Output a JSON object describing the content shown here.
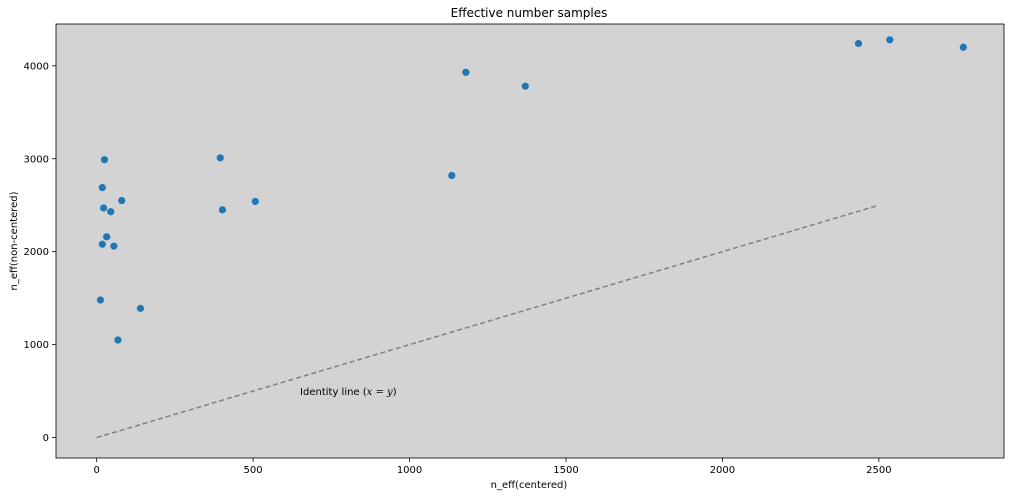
{
  "chart_data": {
    "type": "scatter",
    "title": "Effective number samples",
    "xlabel": "n_eff(centered)",
    "ylabel": "n_eff(non-centered)",
    "xlim": [
      -130,
      2900
    ],
    "ylim": [
      -220,
      4450
    ],
    "xticks": [
      0,
      500,
      1000,
      1500,
      2000,
      2500
    ],
    "yticks": [
      0,
      1000,
      2000,
      3000,
      4000
    ],
    "background": "#d3d3d3",
    "grid": false,
    "legend": "none",
    "series": [
      {
        "color": "#1f77b4",
        "points": [
          {
            "x": 25,
            "y": 2990
          },
          {
            "x": 18,
            "y": 2690
          },
          {
            "x": 80,
            "y": 2550
          },
          {
            "x": 22,
            "y": 2470
          },
          {
            "x": 45,
            "y": 2430
          },
          {
            "x": 32,
            "y": 2160
          },
          {
            "x": 18,
            "y": 2080
          },
          {
            "x": 55,
            "y": 2060
          },
          {
            "x": 12,
            "y": 1480
          },
          {
            "x": 140,
            "y": 1390
          },
          {
            "x": 68,
            "y": 1050
          },
          {
            "x": 395,
            "y": 3010
          },
          {
            "x": 402,
            "y": 2450
          },
          {
            "x": 507,
            "y": 2540
          },
          {
            "x": 1135,
            "y": 2820
          },
          {
            "x": 1180,
            "y": 3930
          },
          {
            "x": 1370,
            "y": 3780
          },
          {
            "x": 2435,
            "y": 4240
          },
          {
            "x": 2535,
            "y": 4280
          },
          {
            "x": 2770,
            "y": 4200
          }
        ]
      }
    ],
    "reference_line": {
      "x": [
        0,
        2500
      ],
      "y": [
        0,
        2500
      ],
      "color": "#808080",
      "style": "dashed"
    },
    "annotation": {
      "prefix": "Identity line (",
      "math": "x = y",
      "suffix": ")",
      "x": 650,
      "y": 500
    }
  }
}
